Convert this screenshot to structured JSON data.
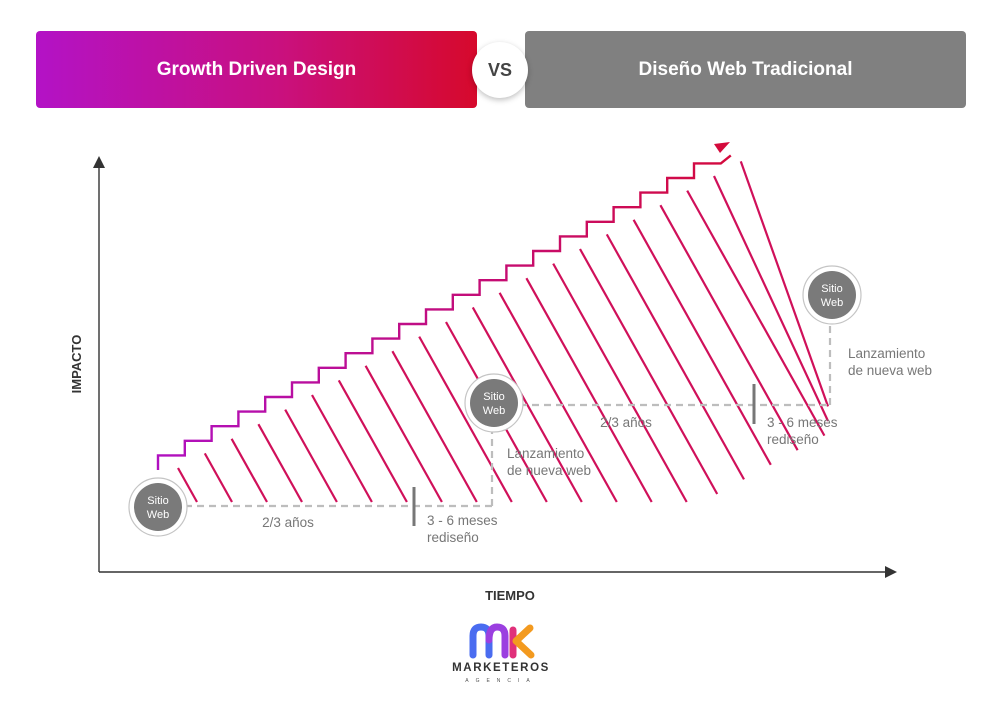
{
  "header": {
    "left_title": "Growth Driven Design",
    "vs_label": "VS",
    "right_title": "Diseño Web Tradicional"
  },
  "axes": {
    "y_label": "IMPACTO",
    "x_label": "TIEMPO"
  },
  "nodes": [
    {
      "line1": "Sitio",
      "line2": "Web"
    },
    {
      "line1": "Sitio",
      "line2": "Web"
    },
    {
      "line1": "Sitio",
      "line2": "Web"
    }
  ],
  "annotations": {
    "period_1": "2/3 años",
    "redesign_1": [
      "3 - 6 meses",
      "rediseño"
    ],
    "launch_1": [
      "Lanzamiento",
      "de nueva web"
    ],
    "period_2": "2/3 años",
    "redesign_2": [
      "3 - 6 meses",
      "rediseño"
    ],
    "launch_2": [
      "Lanzamiento",
      "de nueva web"
    ]
  },
  "logo": {
    "name": "MARKETEROS",
    "subtitle": "AGENCIA"
  },
  "colors": {
    "gdd_gradient": [
      "#b312c6",
      "#d6092c"
    ],
    "traditional": "#808080",
    "stripe": "#d0105a",
    "dash": "#bdbdbd",
    "node": "#7a7a7a"
  }
}
